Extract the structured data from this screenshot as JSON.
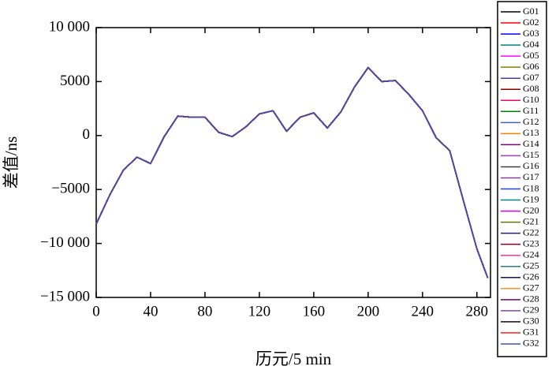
{
  "chart_data": {
    "type": "line",
    "xlabel": "历元/5 min",
    "ylabel": "差值/ns",
    "x": [
      0,
      10,
      20,
      30,
      40,
      50,
      60,
      70,
      80,
      90,
      100,
      110,
      120,
      130,
      140,
      150,
      160,
      170,
      180,
      190,
      200,
      210,
      220,
      230,
      240,
      250,
      260,
      270,
      280,
      288
    ],
    "xlim": [
      0,
      290
    ],
    "xticks": [
      0,
      40,
      80,
      120,
      160,
      200,
      240,
      280
    ],
    "ylim": [
      -15000,
      10000
    ],
    "yticks": [
      {
        "value": -15000,
        "label": "−15 000"
      },
      {
        "value": -10000,
        "label": "−10 000"
      },
      {
        "value": -5000,
        "label": "−5000"
      },
      0,
      5000,
      {
        "value": 10000,
        "label": "10 000"
      }
    ],
    "legend": "outside-right",
    "series": [
      {
        "name": "G01",
        "color": "#000000",
        "values": [
          -8200,
          -5500,
          -3200,
          -2000,
          -2600,
          -100,
          1800,
          1700,
          1700,
          300,
          -100,
          800,
          2000,
          2300,
          400,
          1700,
          2100,
          700,
          2200,
          4500,
          6300,
          5000,
          5100,
          3800,
          2300,
          -200,
          -1400,
          -6000,
          -10500,
          -13200
        ]
      },
      {
        "name": "G02",
        "color": "#ff0000",
        "values": [
          -8200,
          -5500,
          -3200,
          -2000,
          -2600,
          -100,
          1800,
          1700,
          1700,
          300,
          -100,
          800,
          2000,
          2300,
          400,
          1700,
          2100,
          700,
          2200,
          4500,
          6300,
          5000,
          5100,
          3800,
          2300,
          -200,
          -1400,
          -6000,
          -10500,
          -13200
        ]
      },
      {
        "name": "G03",
        "color": "#0000ff",
        "values": [
          -8200,
          -5500,
          -3200,
          -2000,
          -2600,
          -100,
          1800,
          1700,
          1700,
          300,
          -100,
          800,
          2000,
          2300,
          400,
          1700,
          2100,
          700,
          2200,
          4500,
          6300,
          5000,
          5100,
          3800,
          2300,
          -200,
          -1400,
          -6000,
          -10500,
          -13200
        ]
      },
      {
        "name": "G04",
        "color": "#008080",
        "values": [
          -8200,
          -5500,
          -3200,
          -2000,
          -2600,
          -100,
          1800,
          1700,
          1700,
          300,
          -100,
          800,
          2000,
          2300,
          400,
          1700,
          2100,
          700,
          2200,
          4500,
          6300,
          5000,
          5100,
          3800,
          2300,
          -200,
          -1400,
          -6000,
          -10500,
          -13200
        ]
      },
      {
        "name": "G05",
        "color": "#ff00ff",
        "values": [
          -8200,
          -5500,
          -3200,
          -2000,
          -2600,
          -100,
          1800,
          1700,
          1700,
          300,
          -100,
          800,
          2000,
          2300,
          400,
          1700,
          2100,
          700,
          2200,
          4500,
          6300,
          5000,
          5100,
          3800,
          2300,
          -200,
          -1400,
          -6000,
          -10500,
          -13200
        ]
      },
      {
        "name": "G06",
        "color": "#808000",
        "values": [
          -8200,
          -5500,
          -3200,
          -2000,
          -2600,
          -100,
          1800,
          1700,
          1700,
          300,
          -100,
          800,
          2000,
          2300,
          400,
          1700,
          2100,
          700,
          2200,
          4500,
          6300,
          5000,
          5100,
          3800,
          2300,
          -200,
          -1400,
          -6000,
          -10500,
          -13200
        ]
      },
      {
        "name": "G07",
        "color": "#4040a0",
        "values": [
          -8200,
          -5500,
          -3200,
          -2000,
          -2600,
          -100,
          1800,
          1700,
          1700,
          300,
          -100,
          800,
          2000,
          2300,
          400,
          1700,
          2100,
          700,
          2200,
          4500,
          6300,
          5000,
          5100,
          3800,
          2300,
          -200,
          -1400,
          -6000,
          -10500,
          -13200
        ]
      },
      {
        "name": "G08",
        "color": "#800000",
        "values": [
          -8200,
          -5500,
          -3200,
          -2000,
          -2600,
          -100,
          1800,
          1700,
          1700,
          300,
          -100,
          800,
          2000,
          2300,
          400,
          1700,
          2100,
          700,
          2200,
          4500,
          6300,
          5000,
          5100,
          3800,
          2300,
          -200,
          -1400,
          -6000,
          -10500,
          -13200
        ]
      },
      {
        "name": "G10",
        "color": "#ff0066",
        "values": [
          -8200,
          -5500,
          -3200,
          -2000,
          -2600,
          -100,
          1800,
          1700,
          1700,
          300,
          -100,
          800,
          2000,
          2300,
          400,
          1700,
          2100,
          700,
          2200,
          4500,
          6300,
          5000,
          5100,
          3800,
          2300,
          -200,
          -1400,
          -6000,
          -10500,
          -13200
        ]
      },
      {
        "name": "G11",
        "color": "#008000",
        "values": [
          -8200,
          -5500,
          -3200,
          -2000,
          -2600,
          -100,
          1800,
          1700,
          1700,
          300,
          -100,
          800,
          2000,
          2300,
          400,
          1700,
          2100,
          700,
          2200,
          4500,
          6300,
          5000,
          5100,
          3800,
          2300,
          -200,
          -1400,
          -6000,
          -10500,
          -13200
        ]
      },
      {
        "name": "G12",
        "color": "#4060c0",
        "values": [
          -8200,
          -5500,
          -3200,
          -2000,
          -2600,
          -100,
          1800,
          1700,
          1700,
          300,
          -100,
          800,
          2000,
          2300,
          400,
          1700,
          2100,
          700,
          2200,
          4500,
          6300,
          5000,
          5100,
          3800,
          2300,
          -200,
          -1400,
          -6000,
          -10500,
          -13200
        ]
      },
      {
        "name": "G13",
        "color": "#ff8000",
        "values": [
          -8200,
          -5500,
          -3200,
          -2000,
          -2600,
          -100,
          1800,
          1700,
          1700,
          300,
          -100,
          800,
          2000,
          2300,
          400,
          1700,
          2100,
          700,
          2200,
          4500,
          6300,
          5000,
          5100,
          3800,
          2300,
          -200,
          -1400,
          -6000,
          -10500,
          -13200
        ]
      },
      {
        "name": "G14",
        "color": "#800080",
        "values": [
          -8200,
          -5500,
          -3200,
          -2000,
          -2600,
          -100,
          1800,
          1700,
          1700,
          300,
          -100,
          800,
          2000,
          2300,
          400,
          1700,
          2100,
          700,
          2200,
          4500,
          6300,
          5000,
          5100,
          3800,
          2300,
          -200,
          -1400,
          -6000,
          -10500,
          -13200
        ]
      },
      {
        "name": "G15",
        "color": "#a040c0",
        "values": [
          -8200,
          -5500,
          -3200,
          -2000,
          -2600,
          -100,
          1800,
          1700,
          1700,
          300,
          -100,
          800,
          2000,
          2300,
          400,
          1700,
          2100,
          700,
          2200,
          4500,
          6300,
          5000,
          5100,
          3800,
          2300,
          -200,
          -1400,
          -6000,
          -10500,
          -13200
        ]
      },
      {
        "name": "G16",
        "color": "#404040",
        "values": [
          -8200,
          -5500,
          -3200,
          -2000,
          -2600,
          -100,
          1800,
          1700,
          1700,
          300,
          -100,
          800,
          2000,
          2300,
          400,
          1700,
          2100,
          700,
          2200,
          4500,
          6300,
          5000,
          5100,
          3800,
          2300,
          -200,
          -1400,
          -6000,
          -10500,
          -13200
        ]
      },
      {
        "name": "G17",
        "color": "#8040a0",
        "values": [
          -8200,
          -5500,
          -3200,
          -2000,
          -2600,
          -100,
          1800,
          1700,
          1700,
          300,
          -100,
          800,
          2000,
          2300,
          400,
          1700,
          2100,
          700,
          2200,
          4500,
          6300,
          5000,
          5100,
          3800,
          2300,
          -200,
          -1400,
          -6000,
          -10500,
          -13200
        ]
      },
      {
        "name": "G18",
        "color": "#2040ff",
        "values": [
          -8200,
          -5500,
          -3200,
          -2000,
          -2600,
          -100,
          1800,
          1700,
          1700,
          300,
          -100,
          800,
          2000,
          2300,
          400,
          1700,
          2100,
          700,
          2200,
          4500,
          6300,
          5000,
          5100,
          3800,
          2300,
          -200,
          -1400,
          -6000,
          -10500,
          -13200
        ]
      },
      {
        "name": "G19",
        "color": "#008888",
        "values": [
          -8200,
          -5500,
          -3200,
          -2000,
          -2600,
          -100,
          1800,
          1700,
          1700,
          300,
          -100,
          800,
          2000,
          2300,
          400,
          1700,
          2100,
          700,
          2200,
          4500,
          6300,
          5000,
          5100,
          3800,
          2300,
          -200,
          -1400,
          -6000,
          -10500,
          -13200
        ]
      },
      {
        "name": "G20",
        "color": "#e000e0",
        "values": [
          -8200,
          -5500,
          -3200,
          -2000,
          -2600,
          -100,
          1800,
          1700,
          1700,
          300,
          -100,
          800,
          2000,
          2300,
          400,
          1700,
          2100,
          700,
          2200,
          4500,
          6300,
          5000,
          5100,
          3800,
          2300,
          -200,
          -1400,
          -6000,
          -10500,
          -13200
        ]
      },
      {
        "name": "G21",
        "color": "#707000",
        "values": [
          -8200,
          -5500,
          -3200,
          -2000,
          -2600,
          -100,
          1800,
          1700,
          1700,
          300,
          -100,
          800,
          2000,
          2300,
          400,
          1700,
          2100,
          700,
          2200,
          4500,
          6300,
          5000,
          5100,
          3800,
          2300,
          -200,
          -1400,
          -6000,
          -10500,
          -13200
        ]
      },
      {
        "name": "G22",
        "color": "#202080",
        "values": [
          -8200,
          -5500,
          -3200,
          -2000,
          -2600,
          -100,
          1800,
          1700,
          1700,
          300,
          -100,
          800,
          2000,
          2300,
          400,
          1700,
          2100,
          700,
          2200,
          4500,
          6300,
          5000,
          5100,
          3800,
          2300,
          -200,
          -1400,
          -6000,
          -10500,
          -13200
        ]
      },
      {
        "name": "G23",
        "color": "#900020",
        "values": [
          -8200,
          -5500,
          -3200,
          -2000,
          -2600,
          -100,
          1800,
          1700,
          1700,
          300,
          -100,
          800,
          2000,
          2300,
          400,
          1700,
          2100,
          700,
          2200,
          4500,
          6300,
          5000,
          5100,
          3800,
          2300,
          -200,
          -1400,
          -6000,
          -10500,
          -13200
        ]
      },
      {
        "name": "G24",
        "color": "#ff3399",
        "values": [
          -8200,
          -5500,
          -3200,
          -2000,
          -2600,
          -100,
          1800,
          1700,
          1700,
          300,
          -100,
          800,
          2000,
          2300,
          400,
          1700,
          2100,
          700,
          2200,
          4500,
          6300,
          5000,
          5100,
          3800,
          2300,
          -200,
          -1400,
          -6000,
          -10500,
          -13200
        ]
      },
      {
        "name": "G25",
        "color": "#208080",
        "values": [
          -8200,
          -5500,
          -3200,
          -2000,
          -2600,
          -100,
          1800,
          1700,
          1700,
          300,
          -100,
          800,
          2000,
          2300,
          400,
          1700,
          2100,
          700,
          2200,
          4500,
          6300,
          5000,
          5100,
          3800,
          2300,
          -200,
          -1400,
          -6000,
          -10500,
          -13200
        ]
      },
      {
        "name": "G26",
        "color": "#101070",
        "values": [
          -8200,
          -5500,
          -3200,
          -2000,
          -2600,
          -100,
          1800,
          1700,
          1700,
          300,
          -100,
          800,
          2000,
          2300,
          400,
          1700,
          2100,
          700,
          2200,
          4500,
          6300,
          5000,
          5100,
          3800,
          2300,
          -200,
          -1400,
          -6000,
          -10500,
          -13200
        ]
      },
      {
        "name": "G27",
        "color": "#ff9020",
        "values": [
          -8200,
          -5500,
          -3200,
          -2000,
          -2600,
          -100,
          1800,
          1700,
          1700,
          300,
          -100,
          800,
          2000,
          2300,
          400,
          1700,
          2100,
          700,
          2200,
          4500,
          6300,
          5000,
          5100,
          3800,
          2300,
          -200,
          -1400,
          -6000,
          -10500,
          -13200
        ]
      },
      {
        "name": "G28",
        "color": "#700070",
        "values": [
          -8200,
          -5500,
          -3200,
          -2000,
          -2600,
          -100,
          1800,
          1700,
          1700,
          300,
          -100,
          800,
          2000,
          2300,
          400,
          1700,
          2100,
          700,
          2200,
          4500,
          6300,
          5000,
          5100,
          3800,
          2300,
          -200,
          -1400,
          -6000,
          -10500,
          -13200
        ]
      },
      {
        "name": "G29",
        "color": "#9040b0",
        "values": [
          -8200,
          -5500,
          -3200,
          -2000,
          -2600,
          -100,
          1800,
          1700,
          1700,
          300,
          -100,
          800,
          2000,
          2300,
          400,
          1700,
          2100,
          700,
          2200,
          4500,
          6300,
          5000,
          5100,
          3800,
          2300,
          -200,
          -1400,
          -6000,
          -10500,
          -13200
        ]
      },
      {
        "name": "G30",
        "color": "#200020",
        "values": [
          -8200,
          -5500,
          -3200,
          -2000,
          -2600,
          -100,
          1800,
          1700,
          1700,
          300,
          -100,
          800,
          2000,
          2300,
          400,
          1700,
          2100,
          700,
          2200,
          4500,
          6300,
          5000,
          5100,
          3800,
          2300,
          -200,
          -1400,
          -6000,
          -10500,
          -13200
        ]
      },
      {
        "name": "G31",
        "color": "#ff2020",
        "values": [
          -8200,
          -5500,
          -3200,
          -2000,
          -2600,
          -100,
          1800,
          1700,
          1700,
          300,
          -100,
          800,
          2000,
          2300,
          400,
          1700,
          2100,
          700,
          2200,
          4500,
          6300,
          5000,
          5100,
          3800,
          2300,
          -200,
          -1400,
          -6000,
          -10500,
          -13200
        ]
      },
      {
        "name": "G32",
        "color": "#4050b0",
        "values": [
          -8200,
          -5500,
          -3200,
          -2000,
          -2600,
          -100,
          1800,
          1700,
          1700,
          300,
          -100,
          800,
          2000,
          2300,
          400,
          1700,
          2100,
          700,
          2200,
          4500,
          6300,
          5000,
          5100,
          3800,
          2300,
          -200,
          -1400,
          -6000,
          -10500,
          -13200
        ]
      }
    ]
  }
}
